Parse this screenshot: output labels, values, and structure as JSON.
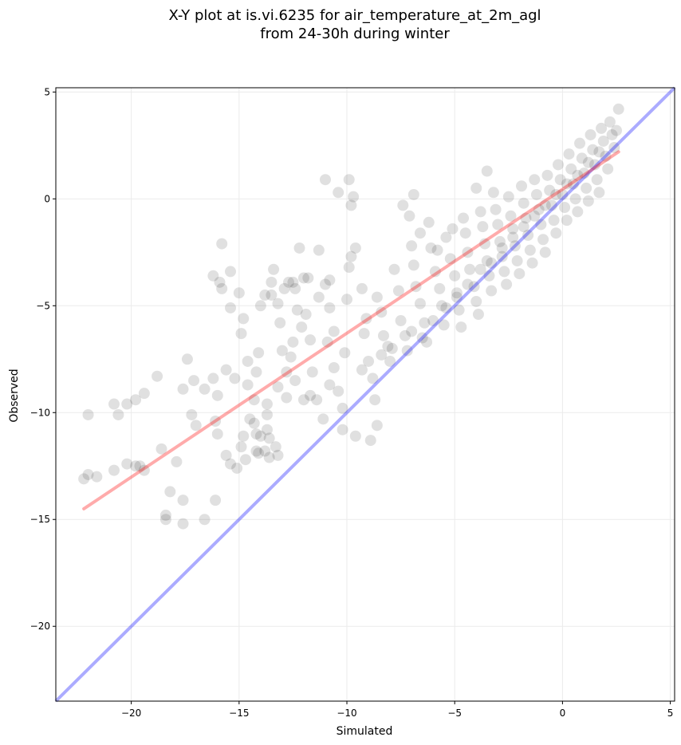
{
  "chart_data": {
    "type": "scatter",
    "title": "X-Y plot at is.vi.6235 for air_temperature_at_2m_agl",
    "subtitle": "from 24-30h during winter",
    "xlabel": "Simulated",
    "ylabel": "Observed",
    "xlim": [
      -23.5,
      5.2
    ],
    "ylim": [
      -23.5,
      5.2
    ],
    "x_ticks": [
      -20,
      -15,
      -10,
      -5,
      0,
      5
    ],
    "y_ticks": [
      -20,
      -15,
      -10,
      -5,
      0,
      5
    ],
    "x_tick_labels": [
      "−20",
      "−15",
      "−10",
      "−5",
      "0",
      "5"
    ],
    "y_tick_labels": [
      "−20",
      "−15",
      "−10",
      "−5",
      "0",
      "5"
    ],
    "grid": true,
    "colors": {
      "points": "#000000",
      "identity_line": "#0000ff",
      "fit_line": "#ff0000"
    },
    "fit_line": {
      "x": [
        -22.2,
        2.6
      ],
      "y": [
        -14.5,
        2.2
      ]
    },
    "identity_line": {
      "x": [
        -23.5,
        5.2
      ],
      "y": [
        -23.5,
        5.2
      ]
    },
    "points": [
      [
        -22.2,
        -13.1
      ],
      [
        -22.0,
        -12.9
      ],
      [
        -21.6,
        -13.0
      ],
      [
        -22.0,
        -10.1
      ],
      [
        -20.8,
        -12.7
      ],
      [
        -20.2,
        -12.4
      ],
      [
        -20.6,
        -10.1
      ],
      [
        -20.8,
        -9.6
      ],
      [
        -20.2,
        -9.6
      ],
      [
        -19.8,
        -9.4
      ],
      [
        -19.6,
        -12.5
      ],
      [
        -19.8,
        -12.5
      ],
      [
        -19.4,
        -12.7
      ],
      [
        -19.4,
        -9.1
      ],
      [
        -18.8,
        -8.3
      ],
      [
        -18.6,
        -11.7
      ],
      [
        -18.4,
        -14.8
      ],
      [
        -18.4,
        -15.0
      ],
      [
        -18.2,
        -13.7
      ],
      [
        -17.9,
        -12.3
      ],
      [
        -17.6,
        -8.9
      ],
      [
        -17.4,
        -7.5
      ],
      [
        -17.6,
        -14.1
      ],
      [
        -17.6,
        -15.2
      ],
      [
        -17.1,
        -8.5
      ],
      [
        -17.2,
        -10.1
      ],
      [
        -17.0,
        -10.6
      ],
      [
        -16.6,
        -8.9
      ],
      [
        -16.6,
        -15.0
      ],
      [
        -16.2,
        -8.4
      ],
      [
        -16.0,
        -9.2
      ],
      [
        -16.1,
        -14.1
      ],
      [
        -16.0,
        -11.0
      ],
      [
        -16.1,
        -10.4
      ],
      [
        -15.6,
        -8.0
      ],
      [
        -15.6,
        -12.0
      ],
      [
        -15.4,
        -12.4
      ],
      [
        -15.2,
        -8.4
      ],
      [
        -15.1,
        -12.6
      ],
      [
        -14.9,
        -11.6
      ],
      [
        -14.7,
        -12.2
      ],
      [
        -14.5,
        -10.3
      ],
      [
        -14.2,
        -11.8
      ],
      [
        -14.3,
        -10.5
      ],
      [
        -14.0,
        -11.1
      ],
      [
        -13.8,
        -11.8
      ],
      [
        -13.7,
        -10.8
      ],
      [
        -13.6,
        -11.2
      ],
      [
        -13.7,
        -10.1
      ],
      [
        -14.2,
        -11.0
      ],
      [
        -14.1,
        -11.9
      ],
      [
        -13.6,
        -12.1
      ],
      [
        -13.3,
        -11.6
      ],
      [
        -13.2,
        -12.0
      ],
      [
        -14.8,
        -11.1
      ],
      [
        -15.8,
        -2.1
      ],
      [
        -15.9,
        -3.9
      ],
      [
        -15.8,
        -4.2
      ],
      [
        -16.2,
        -3.6
      ],
      [
        -15.4,
        -3.4
      ],
      [
        -15.4,
        -5.1
      ],
      [
        -15.0,
        -4.4
      ],
      [
        -14.9,
        -6.3
      ],
      [
        -14.8,
        -5.6
      ],
      [
        -14.6,
        -7.6
      ],
      [
        -14.3,
        -9.4
      ],
      [
        -14.6,
        -8.7
      ],
      [
        -14.2,
        -8.1
      ],
      [
        -14.1,
        -7.2
      ],
      [
        -14.0,
        -5.0
      ],
      [
        -13.8,
        -4.5
      ],
      [
        -13.5,
        -3.9
      ],
      [
        -13.4,
        -3.3
      ],
      [
        -13.2,
        -4.9
      ],
      [
        -13.1,
        -5.8
      ],
      [
        -13.0,
        -7.1
      ],
      [
        -12.8,
        -8.1
      ],
      [
        -12.8,
        -9.3
      ],
      [
        -12.5,
        -3.9
      ],
      [
        -12.3,
        -5.2
      ],
      [
        -12.5,
        -6.7
      ],
      [
        -12.6,
        -7.4
      ],
      [
        -12.4,
        -4.2
      ],
      [
        -12.2,
        -2.3
      ],
      [
        -11.8,
        -3.7
      ],
      [
        -11.9,
        -5.4
      ],
      [
        -11.7,
        -6.6
      ],
      [
        -11.6,
        -8.1
      ],
      [
        -11.4,
        -9.4
      ],
      [
        -11.3,
        -4.6
      ],
      [
        -11.0,
        -4.0
      ],
      [
        -10.8,
        -3.8
      ],
      [
        -10.8,
        -5.1
      ],
      [
        -10.6,
        -6.2
      ],
      [
        -10.6,
        -7.9
      ],
      [
        -10.4,
        -9.0
      ],
      [
        -10.2,
        -10.8
      ],
      [
        -10.0,
        -4.7
      ],
      [
        -9.9,
        -3.2
      ],
      [
        -9.8,
        -2.7
      ],
      [
        -9.8,
        -0.3
      ],
      [
        -9.7,
        0.1
      ],
      [
        -9.6,
        -2.3
      ],
      [
        -9.3,
        -4.2
      ],
      [
        -9.1,
        -5.6
      ],
      [
        -9.2,
        -6.3
      ],
      [
        -9.0,
        -7.6
      ],
      [
        -8.8,
        -8.4
      ],
      [
        -8.7,
        -9.4
      ],
      [
        -8.6,
        -10.6
      ],
      [
        -8.6,
        -4.6
      ],
      [
        -8.4,
        -5.3
      ],
      [
        -8.3,
        -6.4
      ],
      [
        -8.1,
        -6.9
      ],
      [
        -8.0,
        -7.6
      ],
      [
        -7.8,
        -3.3
      ],
      [
        -7.6,
        -4.3
      ],
      [
        -7.5,
        -5.7
      ],
      [
        -7.3,
        -6.4
      ],
      [
        -7.2,
        -7.1
      ],
      [
        -7.0,
        -2.2
      ],
      [
        -6.9,
        -3.1
      ],
      [
        -6.8,
        -4.1
      ],
      [
        -6.6,
        -4.9
      ],
      [
        -6.4,
        -5.8
      ],
      [
        -6.3,
        -6.7
      ],
      [
        -6.2,
        -1.1
      ],
      [
        -6.1,
        -2.3
      ],
      [
        -5.9,
        -3.4
      ],
      [
        -5.7,
        -4.2
      ],
      [
        -5.6,
        -5.0
      ],
      [
        -5.5,
        -5.9
      ],
      [
        -5.4,
        -1.8
      ],
      [
        -5.2,
        -2.8
      ],
      [
        -5.0,
        -3.6
      ],
      [
        -4.9,
        -4.4
      ],
      [
        -4.8,
        -5.2
      ],
      [
        -4.7,
        -6.0
      ],
      [
        -4.6,
        -0.9
      ],
      [
        -4.5,
        -1.6
      ],
      [
        -4.4,
        -2.5
      ],
      [
        -4.3,
        -3.3
      ],
      [
        -4.1,
        -4.1
      ],
      [
        -4.0,
        -4.8
      ],
      [
        -3.9,
        -5.4
      ],
      [
        -3.8,
        -0.6
      ],
      [
        -3.7,
        -1.3
      ],
      [
        -3.6,
        -2.1
      ],
      [
        -3.5,
        -2.9
      ],
      [
        -3.4,
        -3.6
      ],
      [
        -3.3,
        -4.3
      ],
      [
        -3.2,
        0.3
      ],
      [
        -3.1,
        -0.5
      ],
      [
        -3.0,
        -1.2
      ],
      [
        -2.9,
        -2.0
      ],
      [
        -2.8,
        -2.7
      ],
      [
        -2.7,
        -3.4
      ],
      [
        -2.6,
        -4.0
      ],
      [
        -2.5,
        0.1
      ],
      [
        -2.4,
        -0.8
      ],
      [
        -2.3,
        -1.4
      ],
      [
        -2.2,
        -2.2
      ],
      [
        -2.1,
        -2.9
      ],
      [
        -2.0,
        -3.5
      ],
      [
        -1.9,
        0.6
      ],
      [
        -1.8,
        -0.2
      ],
      [
        -1.7,
        -0.9
      ],
      [
        -1.6,
        -1.7
      ],
      [
        -1.5,
        -2.4
      ],
      [
        -1.4,
        -3.0
      ],
      [
        -1.3,
        0.9
      ],
      [
        -1.2,
        0.2
      ],
      [
        -1.1,
        -0.5
      ],
      [
        -1.0,
        -1.2
      ],
      [
        -0.9,
        -1.9
      ],
      [
        -0.8,
        -2.5
      ],
      [
        -0.7,
        1.1
      ],
      [
        -0.6,
        0.4
      ],
      [
        -0.5,
        -0.3
      ],
      [
        -0.4,
        -1.0
      ],
      [
        -0.3,
        -1.6
      ],
      [
        -0.2,
        1.6
      ],
      [
        -0.1,
        0.9
      ],
      [
        0.0,
        0.2
      ],
      [
        0.1,
        -0.4
      ],
      [
        0.2,
        -1.0
      ],
      [
        0.3,
        2.1
      ],
      [
        0.4,
        1.4
      ],
      [
        0.5,
        0.7
      ],
      [
        0.6,
        0.0
      ],
      [
        0.7,
        -0.6
      ],
      [
        0.8,
        2.6
      ],
      [
        0.9,
        1.9
      ],
      [
        1.0,
        1.2
      ],
      [
        1.1,
        0.5
      ],
      [
        1.2,
        -0.1
      ],
      [
        1.3,
        3.0
      ],
      [
        1.4,
        2.3
      ],
      [
        1.5,
        1.6
      ],
      [
        1.6,
        0.9
      ],
      [
        1.7,
        0.3
      ],
      [
        1.8,
        3.3
      ],
      [
        1.9,
        2.7
      ],
      [
        2.0,
        2.0
      ],
      [
        2.1,
        1.4
      ],
      [
        2.2,
        3.6
      ],
      [
        2.3,
        3.0
      ],
      [
        2.4,
        2.4
      ],
      [
        2.5,
        3.2
      ],
      [
        2.6,
        4.2
      ],
      [
        -6.6,
        -1.6
      ],
      [
        -7.1,
        -0.8
      ],
      [
        -7.4,
        -0.3
      ],
      [
        -6.9,
        0.2
      ],
      [
        -5.8,
        -2.4
      ],
      [
        -5.1,
        -1.4
      ],
      [
        -3.5,
        1.3
      ],
      [
        -4.0,
        0.5
      ],
      [
        -9.9,
        0.9
      ],
      [
        -10.4,
        0.3
      ],
      [
        -11.0,
        0.9
      ],
      [
        -11.3,
        -2.4
      ],
      [
        -12.0,
        -3.7
      ],
      [
        -12.7,
        -3.9
      ],
      [
        -13.5,
        -4.5
      ],
      [
        -12.9,
        -4.2
      ],
      [
        -12.1,
        -6.0
      ],
      [
        -10.9,
        -6.7
      ],
      [
        -10.1,
        -7.2
      ],
      [
        -9.3,
        -8.0
      ],
      [
        -8.4,
        -7.3
      ],
      [
        -7.9,
        -7.0
      ],
      [
        -7.0,
        -6.2
      ],
      [
        -6.5,
        -6.5
      ],
      [
        -6.0,
        -5.7
      ],
      [
        -5.4,
        -5.1
      ],
      [
        -4.9,
        -4.6
      ],
      [
        -4.4,
        -4.0
      ],
      [
        -3.8,
        -3.3
      ],
      [
        -3.3,
        -3.0
      ],
      [
        -2.8,
        -2.3
      ],
      [
        -2.3,
        -1.8
      ],
      [
        -1.8,
        -1.3
      ],
      [
        -1.3,
        -0.8
      ],
      [
        -0.8,
        -0.3
      ],
      [
        -0.3,
        0.2
      ],
      [
        0.2,
        0.7
      ],
      [
        0.7,
        1.1
      ],
      [
        1.2,
        1.7
      ],
      [
        1.7,
        2.2
      ],
      [
        -12.0,
        -9.4
      ],
      [
        -11.1,
        -10.3
      ],
      [
        -10.2,
        -9.8
      ],
      [
        -9.6,
        -11.1
      ],
      [
        -8.9,
        -11.3
      ],
      [
        -13.7,
        -9.6
      ],
      [
        -13.2,
        -8.8
      ],
      [
        -12.4,
        -8.5
      ],
      [
        -11.7,
        -9.2
      ],
      [
        -10.8,
        -8.7
      ]
    ]
  }
}
